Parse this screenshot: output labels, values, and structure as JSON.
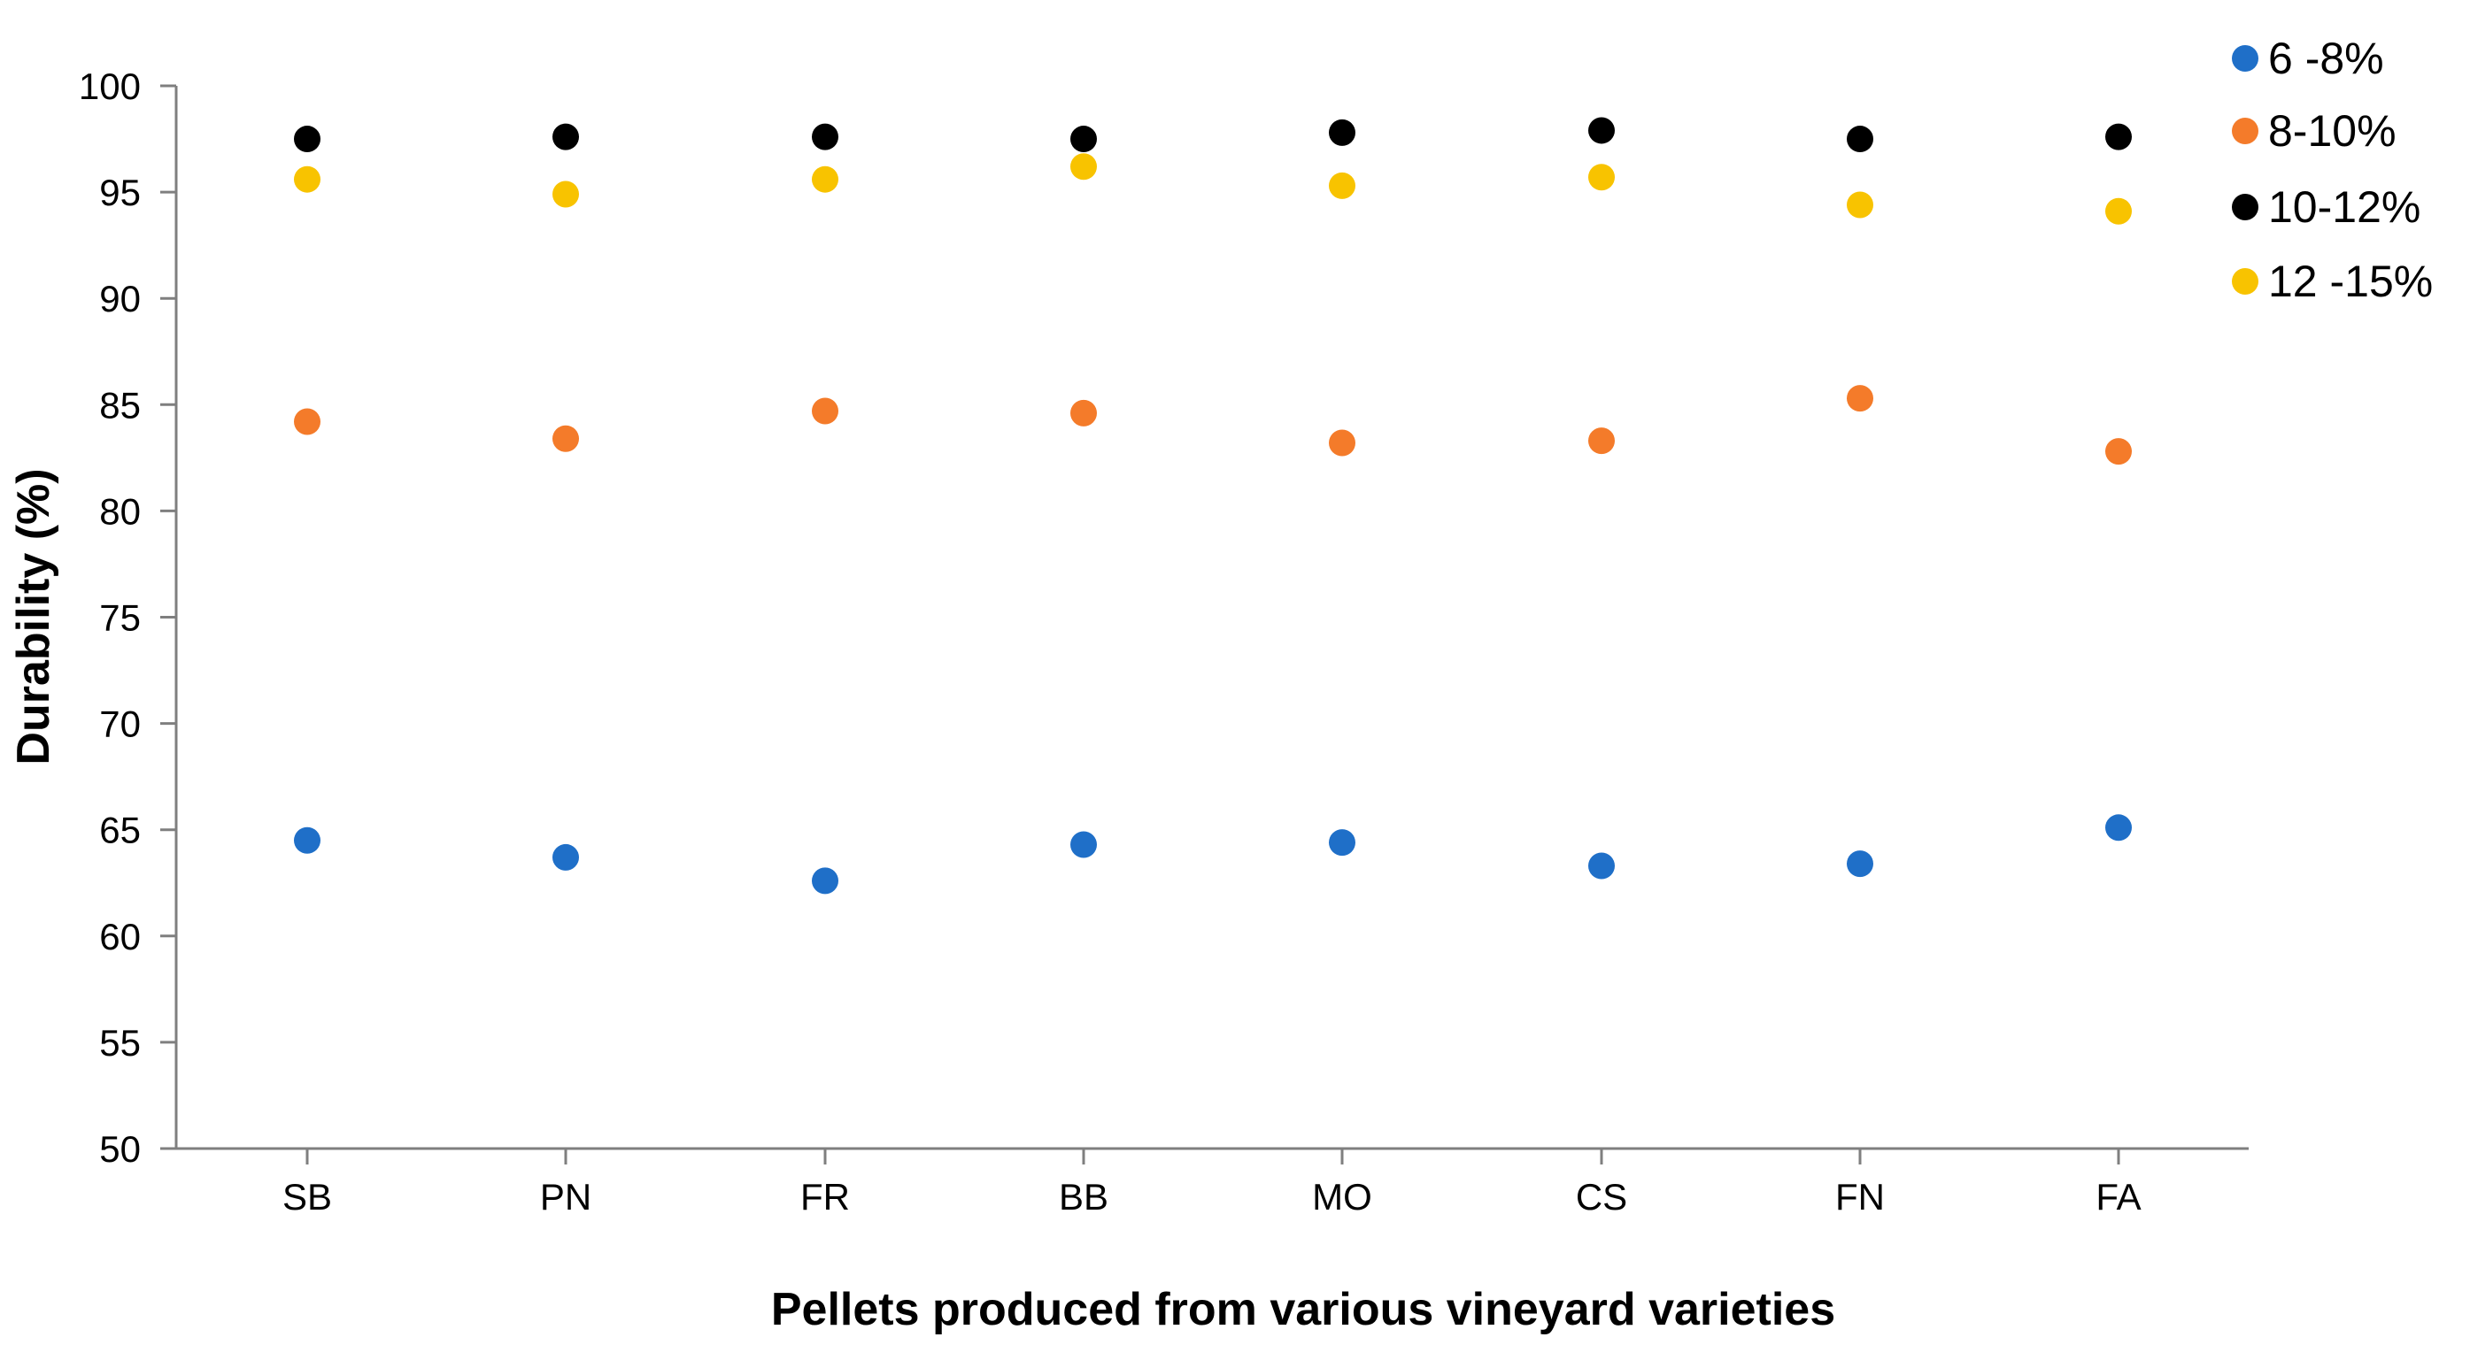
{
  "chart_data": {
    "type": "scatter",
    "title": "",
    "xlabel": "Pellets produced from various vineyard varieties",
    "ylabel": "Durability (%)",
    "ylim": [
      50,
      100
    ],
    "yticks": [
      50,
      55,
      60,
      65,
      70,
      75,
      80,
      85,
      90,
      95,
      100
    ],
    "categories": [
      "SB",
      "PN",
      "FR",
      "BB",
      "MO",
      "CS",
      "FN",
      "FA"
    ],
    "grid": false,
    "legend_position": "top-right",
    "series": [
      {
        "name": "6 -8%",
        "color": "#1f6fc8",
        "values": [
          64.5,
          63.7,
          62.6,
          64.3,
          64.4,
          63.3,
          63.4,
          65.1
        ]
      },
      {
        "name": "8-10%",
        "color": "#f47b2a",
        "values": [
          84.2,
          83.4,
          84.7,
          84.6,
          83.2,
          83.3,
          85.3,
          82.8
        ]
      },
      {
        "name": "10-12%",
        "color": "#000000",
        "values": [
          97.5,
          97.6,
          97.6,
          97.5,
          97.8,
          97.9,
          97.5,
          97.6
        ]
      },
      {
        "name": "12 -15%",
        "color": "#f8c300",
        "values": [
          95.6,
          94.9,
          95.6,
          96.2,
          95.3,
          95.7,
          94.4,
          94.1
        ]
      }
    ]
  }
}
